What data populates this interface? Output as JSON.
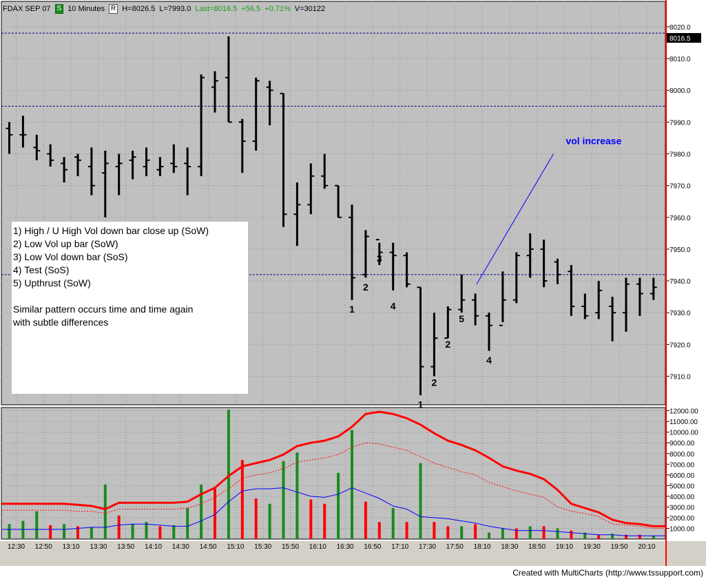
{
  "header": {
    "symbol": "FDAX SEP 07",
    "s_button": "S",
    "interval": "10 Minutes",
    "r_button": "R",
    "high": "H=8026.5",
    "low": "L=7993.0",
    "last": "Last=8016.5",
    "change": "+56.5",
    "change_pct": "+0.71%",
    "volume": "V=30122"
  },
  "notes": {
    "line1": "1) High / U High Vol down bar close up (SoW)",
    "line2": "2) Low Vol up bar (SoW)",
    "line3": "3) Low Vol down bar (SoS)",
    "line4": "4) Test (SoS)",
    "line5": "5) Upthrust (SoW)",
    "line6": "Similar pattern occurs time and time again",
    "line7": "with subtle differences"
  },
  "footer": "Created with MultiCharts (http://www.tssupport.com)",
  "colors": {
    "panel_bg": "#c0c0c0",
    "up_volume": "#1a8a1a",
    "down_volume": "#ff0000",
    "avg_line": "#ff0000",
    "vol_ma_line": "#0000ff",
    "ref_line": "#000080",
    "last_price_bg": "#000000"
  },
  "chart_data": [
    {
      "type": "ohlc",
      "title": "FDAX SEP 07",
      "y_ticks": [
        7910.0,
        7920.0,
        7930.0,
        7940.0,
        7950.0,
        7960.0,
        7970.0,
        7980.0,
        7990.0,
        8000.0,
        8010.0,
        8020.0
      ],
      "ylim": [
        7901,
        8028
      ],
      "last_price": "8016.5",
      "reference_lines": [
        8018,
        7995,
        7942
      ],
      "bars": [
        {
          "x": 0,
          "h": 7990,
          "l": 7980,
          "o": 7988,
          "c": 7986
        },
        {
          "x": 1,
          "h": 7992,
          "l": 7982,
          "o": 7986,
          "c": 7986
        },
        {
          "x": 2,
          "h": 7986,
          "l": 7978,
          "o": 7982,
          "c": 7981
        },
        {
          "x": 3,
          "h": 7983,
          "l": 7976,
          "o": 7980,
          "c": 7978
        },
        {
          "x": 4,
          "h": 7979,
          "l": 7971,
          "o": 7977,
          "c": 7975
        },
        {
          "x": 5,
          "h": 7980,
          "l": 7973,
          "o": 7979,
          "c": 7978
        },
        {
          "x": 6,
          "h": 7982,
          "l": 7967,
          "o": 7976,
          "c": 7970
        },
        {
          "x": 7,
          "h": 7981,
          "l": 7960,
          "o": 7974,
          "c": 7977
        },
        {
          "x": 8,
          "h": 7980,
          "l": 7967,
          "o": 7976,
          "c": 7977
        },
        {
          "x": 9,
          "h": 7981,
          "l": 7972,
          "o": 7978,
          "c": 7979
        },
        {
          "x": 10,
          "h": 7982,
          "l": 7973,
          "o": 7976,
          "c": 7978
        },
        {
          "x": 11,
          "h": 7979,
          "l": 7973,
          "o": 7975,
          "c": 7976
        },
        {
          "x": 12,
          "h": 7983,
          "l": 7974,
          "o": 7977,
          "c": 7976
        },
        {
          "x": 13,
          "h": 7982,
          "l": 7967,
          "o": 7977,
          "c": 7976
        },
        {
          "x": 14,
          "h": 8005,
          "l": 7973,
          "o": 7976,
          "c": 8004
        },
        {
          "x": 15,
          "h": 8006,
          "l": 7993,
          "o": 8001,
          "c": 8003
        },
        {
          "x": 16,
          "h": 8017,
          "l": 7990,
          "o": 8004,
          "c": 7990
        },
        {
          "x": 17,
          "h": 7991,
          "l": 7974,
          "o": 7990,
          "c": 7984
        },
        {
          "x": 18,
          "h": 8004,
          "l": 7981,
          "o": 7984,
          "c": 8003
        },
        {
          "x": 19,
          "h": 8003,
          "l": 7989,
          "o": 8001,
          "c": 8000
        },
        {
          "x": 20,
          "h": 7999,
          "l": 7957,
          "o": 7999,
          "c": 7961
        },
        {
          "x": 21,
          "h": 7971,
          "l": 7951,
          "o": 7961,
          "c": 7964
        },
        {
          "x": 22,
          "h": 7977,
          "l": 7961,
          "o": 7964,
          "c": 7973
        },
        {
          "x": 23,
          "h": 7980,
          "l": 7969,
          "o": 7973,
          "c": 7970
        },
        {
          "x": 24,
          "h": 7970,
          "l": 7960,
          "o": 7970,
          "c": 7960
        },
        {
          "x": 25,
          "h": 7964,
          "l": 7934,
          "o": 7960,
          "c": 7941
        },
        {
          "x": 26,
          "h": 7956,
          "l": 7941,
          "o": 7942,
          "c": 7954
        },
        {
          "x": 27,
          "h": 7952,
          "l": 7945,
          "o": 7953,
          "c": 7949
        },
        {
          "x": 28,
          "h": 7952,
          "l": 7937,
          "o": 7949,
          "c": 7948
        },
        {
          "x": 29,
          "h": 7949,
          "l": 7938,
          "o": 7948,
          "c": 7939
        },
        {
          "x": 30,
          "h": 7938,
          "l": 7904,
          "o": 7938,
          "c": 7913
        },
        {
          "x": 31,
          "h": 7930,
          "l": 7910,
          "o": 7913,
          "c": 7922
        },
        {
          "x": 32,
          "h": 7932,
          "l": 7922,
          "o": 7922,
          "c": 7931
        },
        {
          "x": 33,
          "h": 7942,
          "l": 7930,
          "o": 7931,
          "c": 7934
        },
        {
          "x": 34,
          "h": 7936,
          "l": 7926,
          "o": 7934,
          "c": 7929
        },
        {
          "x": 35,
          "h": 7930,
          "l": 7918,
          "o": 7929,
          "c": 7926
        },
        {
          "x": 36,
          "h": 7943,
          "l": 7927,
          "o": 7926,
          "c": 7934
        },
        {
          "x": 37,
          "h": 7949,
          "l": 7933,
          "o": 7934,
          "c": 7948
        },
        {
          "x": 38,
          "h": 7955,
          "l": 7941,
          "o": 7948,
          "c": 7950
        },
        {
          "x": 39,
          "h": 7953,
          "l": 7938,
          "o": 7950,
          "c": 7940
        },
        {
          "x": 40,
          "h": 7947,
          "l": 7939,
          "o": 7946,
          "c": 7942
        },
        {
          "x": 41,
          "h": 7945,
          "l": 7929,
          "o": 7943,
          "c": 7932
        },
        {
          "x": 42,
          "h": 7936,
          "l": 7928,
          "o": 7932,
          "c": 7929
        },
        {
          "x": 43,
          "h": 7940,
          "l": 7928,
          "o": 7930,
          "c": 7937
        },
        {
          "x": 44,
          "h": 7935,
          "l": 7921,
          "o": 7932,
          "c": 7930
        },
        {
          "x": 45,
          "h": 7941,
          "l": 7924,
          "o": 7930,
          "c": 7939
        },
        {
          "x": 46,
          "h": 7941,
          "l": 7929,
          "o": 7939,
          "c": 7936
        },
        {
          "x": 47,
          "h": 7941,
          "l": 7934,
          "o": 7936,
          "c": 7938
        }
      ],
      "labels": [
        {
          "text": "1",
          "x": 25,
          "y": 7930
        },
        {
          "text": "2",
          "x": 26,
          "y": 7937
        },
        {
          "text": "3",
          "x": 27,
          "y": 7946
        },
        {
          "text": "4",
          "x": 28,
          "y": 7931
        },
        {
          "text": "1",
          "x": 30,
          "y": 7900
        },
        {
          "text": "2",
          "x": 31,
          "y": 7907
        },
        {
          "text": "2",
          "x": 32,
          "y": 7919
        },
        {
          "text": "5",
          "x": 33,
          "y": 7927
        },
        {
          "text": "4",
          "x": 35,
          "y": 7914
        }
      ],
      "annotation": {
        "text": "vol increase",
        "x": 40.6,
        "y": 7983,
        "arrow_from": [
          39.7,
          7980
        ],
        "arrow_to": [
          34.1,
          7939
        ]
      }
    },
    {
      "type": "bar",
      "title": "",
      "y_ticks": [
        1000,
        2000,
        3000,
        4000,
        5000,
        6000,
        7000,
        8000,
        9000,
        10000,
        11000,
        12000
      ],
      "ylim": [
        0,
        12300
      ],
      "x_ticks": [
        "12:30",
        "12:50",
        "13:10",
        "13:30",
        "13:50",
        "14:10",
        "14:30",
        "14:50",
        "15:10",
        "15:30",
        "15:50",
        "16:10",
        "16:30",
        "16:50",
        "17:10",
        "17:30",
        "17:50",
        "18:10",
        "18:30",
        "18:50",
        "19:10",
        "19:30",
        "19:50",
        "20:10"
      ],
      "volume": [
        1400,
        1700,
        2600,
        1300,
        1400,
        1200,
        1100,
        5100,
        2200,
        1400,
        1600,
        1200,
        1300,
        2900,
        5100,
        4800,
        12100,
        7400,
        3800,
        3300,
        7300,
        8100,
        3700,
        3300,
        6200,
        10200,
        3500,
        1600,
        2900,
        1600,
        7100,
        1600,
        1200,
        1200,
        1400,
        600,
        1000,
        1000,
        1200,
        1200,
        1000,
        800,
        600,
        400,
        500,
        400,
        400,
        300
      ],
      "up": [
        true,
        true,
        true,
        false,
        true,
        false,
        true,
        true,
        false,
        true,
        true,
        false,
        true,
        true,
        true,
        false,
        true,
        false,
        false,
        true,
        true,
        true,
        false,
        false,
        true,
        true,
        false,
        false,
        true,
        false,
        true,
        false,
        false,
        true,
        false,
        true,
        true,
        false,
        true,
        false,
        true,
        false,
        true,
        false,
        true,
        false,
        false,
        true
      ],
      "avg_line": [
        3300,
        3300,
        3300,
        3300,
        3300,
        3200,
        3100,
        2800,
        3400,
        3400,
        3400,
        3400,
        3400,
        3500,
        4200,
        4800,
        5900,
        6800,
        7100,
        7400,
        7900,
        8700,
        9000,
        9200,
        9600,
        10500,
        11700,
        11900,
        11700,
        11300,
        10700,
        9900,
        9200,
        8800,
        8300,
        7600,
        6800,
        6400,
        6100,
        5600,
        4600,
        3300,
        2900,
        2500,
        1800,
        1500,
        1400,
        1200
      ],
      "avg_line_thin": [
        2700,
        2700,
        2700,
        2700,
        2700,
        2600,
        2600,
        2400,
        2800,
        2800,
        2800,
        2800,
        2800,
        2900,
        3300,
        3900,
        4700,
        5700,
        6000,
        6200,
        6600,
        7200,
        7400,
        7600,
        7900,
        8600,
        9000,
        8900,
        8600,
        8300,
        7700,
        7100,
        6700,
        6300,
        6000,
        5300,
        4900,
        4500,
        4200,
        3900,
        3000,
        2600,
        2400,
        2100,
        1400,
        1300,
        1200,
        1000
      ],
      "ma_line": [
        900,
        900,
        900,
        900,
        900,
        1000,
        1100,
        1100,
        1300,
        1400,
        1400,
        1300,
        1200,
        1200,
        1700,
        2300,
        3500,
        4500,
        4700,
        4700,
        4800,
        4400,
        4000,
        3900,
        4200,
        4800,
        4300,
        3800,
        3100,
        2800,
        2100,
        2000,
        1900,
        1700,
        1500,
        1200,
        1000,
        800,
        800,
        800,
        700,
        600,
        500,
        400,
        400,
        300,
        300,
        300
      ]
    }
  ]
}
